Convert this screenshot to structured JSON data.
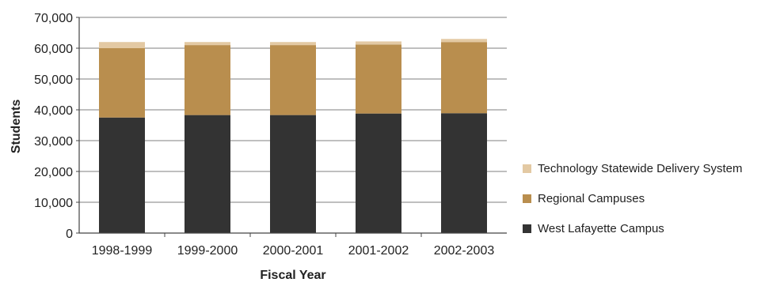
{
  "chart_data": {
    "type": "bar",
    "stacked": true,
    "xlabel": "Fiscal Year",
    "ylabel": "Students",
    "ylim": [
      0,
      70000
    ],
    "yticks": [
      "0",
      "10,000",
      "20,000",
      "30,000",
      "40,000",
      "50,000",
      "60,000",
      "70,000"
    ],
    "ytick_values": [
      0,
      10000,
      20000,
      30000,
      40000,
      50000,
      60000,
      70000
    ],
    "categories": [
      "1998-1999",
      "1999-2000",
      "2000-2001",
      "2001-2002",
      "2002-2003"
    ],
    "series": [
      {
        "name": "West Lafayette Campus",
        "color": "#333333",
        "values": [
          37500,
          38300,
          38300,
          38800,
          38900
        ]
      },
      {
        "name": "Regional Campuses",
        "color": "#B98E4E",
        "values": [
          22500,
          22700,
          22700,
          22400,
          23100
        ]
      },
      {
        "name": "Technology Statewide Delivery System",
        "color": "#E3C9A3",
        "values": [
          2000,
          1000,
          1000,
          1000,
          1000
        ]
      }
    ],
    "legend_position": "right",
    "grid": true
  },
  "legend": [
    {
      "label": "Technology Statewide Delivery System",
      "color": "#E3C9A3"
    },
    {
      "label": "Regional Campuses",
      "color": "#B98E4E"
    },
    {
      "label": "West Lafayette Campus",
      "color": "#333333"
    }
  ]
}
